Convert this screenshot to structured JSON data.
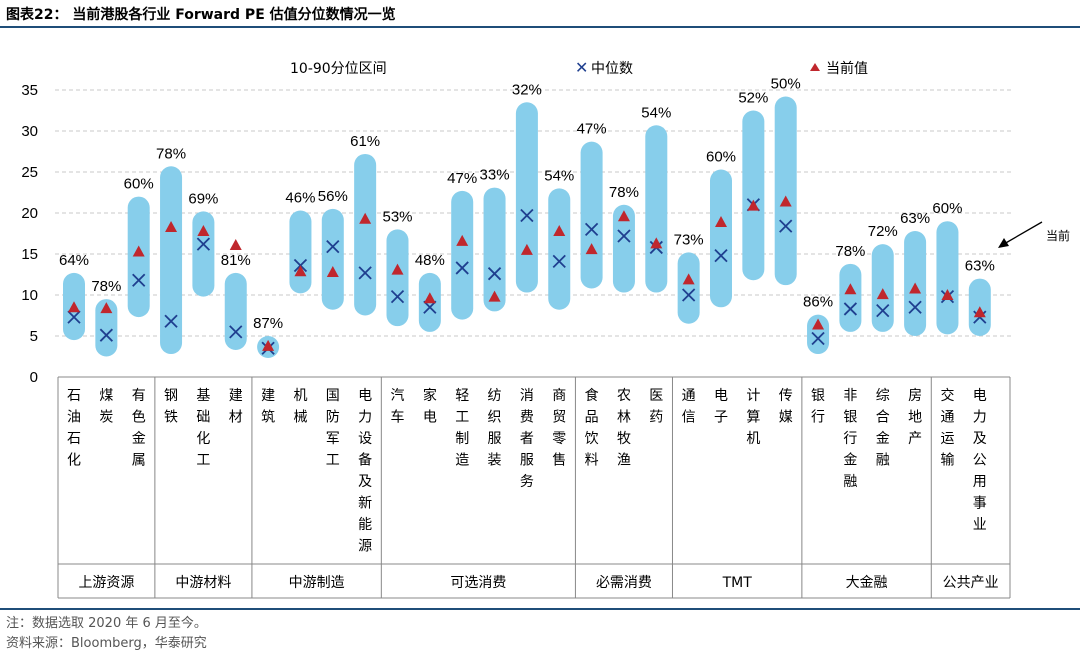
{
  "title": "图表22： 当前港股各行业 Forward PE 估值分位数情况一览",
  "notes": {
    "note": "注：数据选取 2020 年 6 月至今。",
    "source": "资料来源：Bloomberg，华泰研究"
  },
  "chart_data": {
    "type": "range",
    "ylim": [
      0,
      35
    ],
    "yticks": [
      0,
      5,
      10,
      15,
      20,
      25,
      30,
      35
    ],
    "grid": "horizontal-dashed",
    "legend": [
      "10-90分位区间",
      "中位数",
      "当前值"
    ],
    "annotation": "当前",
    "colors": {
      "range": "#87ceeb",
      "median": "#1f3f8f",
      "current": "#c0272d"
    },
    "categories": [
      {
        "label": "石油石化",
        "lo": 4.5,
        "hi": 12.7,
        "median": 7.3,
        "current": 8.5,
        "pct": "64%"
      },
      {
        "label": "煤炭",
        "lo": 2.5,
        "hi": 9.5,
        "median": 5.1,
        "current": 8.4,
        "pct": "78%"
      },
      {
        "label": "有色金属",
        "lo": 7.3,
        "hi": 22,
        "median": 11.8,
        "current": 15.3,
        "pct": "60%"
      },
      {
        "label": "钢铁",
        "lo": 2.8,
        "hi": 25.7,
        "median": 6.8,
        "current": 18.3,
        "pct": "78%"
      },
      {
        "label": "基础化工",
        "lo": 9.8,
        "hi": 20.2,
        "median": 16.2,
        "current": 17.8,
        "pct": "69%"
      },
      {
        "label": "建材",
        "lo": 3.3,
        "hi": 12.7,
        "median": 5.5,
        "current": 16.1,
        "pct": "81%"
      },
      {
        "label": "建筑",
        "lo": 2.5,
        "hi": 5,
        "median": 3.5,
        "current": 3.8,
        "pct": "87%"
      },
      {
        "label": "机械",
        "lo": 10.2,
        "hi": 20.3,
        "median": 13.6,
        "current": 12.9,
        "pct": "46%"
      },
      {
        "label": "国防军工",
        "lo": 8.2,
        "hi": 20.5,
        "median": 15.9,
        "current": 12.8,
        "pct": "56%"
      },
      {
        "label": "电力设备及新能源",
        "lo": 7.5,
        "hi": 27.2,
        "median": 12.7,
        "current": 19.3,
        "pct": "61%"
      },
      {
        "label": "汽车",
        "lo": 6.2,
        "hi": 18,
        "median": 9.8,
        "current": 13.1,
        "pct": "53%"
      },
      {
        "label": "家电",
        "lo": 5.5,
        "hi": 12.7,
        "median": 8.5,
        "current": 9.6,
        "pct": "48%"
      },
      {
        "label": "轻工制造",
        "lo": 7,
        "hi": 22.7,
        "median": 13.3,
        "current": 16.6,
        "pct": "47%"
      },
      {
        "label": "纺织服装",
        "lo": 8,
        "hi": 23.1,
        "median": 12.6,
        "current": 9.8,
        "pct": "33%"
      },
      {
        "label": "消费者服务",
        "lo": 10.3,
        "hi": 33.5,
        "median": 19.7,
        "current": 15.5,
        "pct": "32%"
      },
      {
        "label": "商贸零售",
        "lo": 8.2,
        "hi": 23,
        "median": 14.1,
        "current": 17.8,
        "pct": "54%"
      },
      {
        "label": "食品饮料",
        "lo": 10.8,
        "hi": 28.7,
        "median": 18,
        "current": 15.6,
        "pct": "47%"
      },
      {
        "label": "农林牧渔",
        "lo": 10.3,
        "hi": 21,
        "median": 17.2,
        "current": 19.6,
        "pct": "78%"
      },
      {
        "label": "医药",
        "lo": 10.3,
        "hi": 30.7,
        "median": 15.8,
        "current": 16.3,
        "pct": "54%"
      },
      {
        "label": "通信",
        "lo": 6.5,
        "hi": 15.2,
        "median": 10,
        "current": 11.9,
        "pct": "73%"
      },
      {
        "label": "电子",
        "lo": 8.5,
        "hi": 25.3,
        "median": 14.8,
        "current": 18.9,
        "pct": "60%"
      },
      {
        "label": "计算机",
        "lo": 11.8,
        "hi": 32.5,
        "median": 21,
        "current": 20.9,
        "pct": "52%"
      },
      {
        "label": "传媒",
        "lo": 11.2,
        "hi": 34.2,
        "median": 18.4,
        "current": 21.4,
        "pct": "50%"
      },
      {
        "label": "银行",
        "lo": 2.8,
        "hi": 7.6,
        "median": 4.7,
        "current": 6.4,
        "pct": "86%"
      },
      {
        "label": "非银行金融",
        "lo": 5.5,
        "hi": 13.8,
        "median": 8.3,
        "current": 10.7,
        "pct": "78%"
      },
      {
        "label": "综合金融",
        "lo": 5.5,
        "hi": 16.2,
        "median": 8.1,
        "current": 10.1,
        "pct": "72%"
      },
      {
        "label": "房地产",
        "lo": 5,
        "hi": 17.8,
        "median": 8.5,
        "current": 10.8,
        "pct": "63%"
      },
      {
        "label": "交通运输",
        "lo": 5.2,
        "hi": 19,
        "median": 9.8,
        "current": 10,
        "pct": "60%"
      },
      {
        "label": "电力及公用事业",
        "lo": 5,
        "hi": 12,
        "median": 7.3,
        "current": 7.9,
        "pct": "63%"
      }
    ],
    "groups": [
      {
        "label": "上游资源",
        "start": 0,
        "end": 2
      },
      {
        "label": "中游材料",
        "start": 3,
        "end": 5
      },
      {
        "label": "中游制造",
        "start": 6,
        "end": 9
      },
      {
        "label": "可选消费",
        "start": 10,
        "end": 15
      },
      {
        "label": "必需消费",
        "start": 16,
        "end": 18
      },
      {
        "label": "TMT",
        "start": 19,
        "end": 22
      },
      {
        "label": "大金融",
        "start": 23,
        "end": 26
      },
      {
        "label": "公共产业",
        "start": 27,
        "end": 28
      }
    ]
  }
}
